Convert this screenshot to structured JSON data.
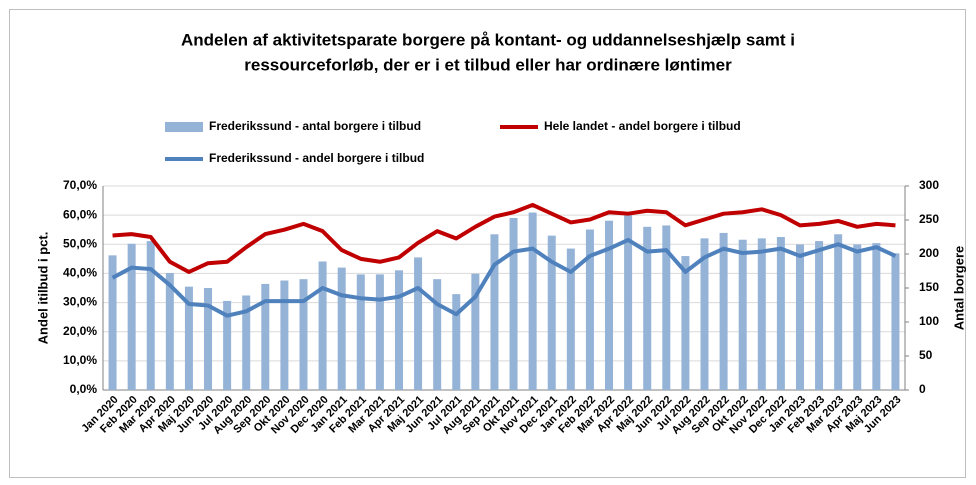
{
  "chart_data": {
    "type": "bar_line_combo",
    "title": [
      "Andelen af aktivitetsparate borgere på kontant- og uddannelseshjælp samt i",
      "ressourceforløb, der er i et tilbud eller har ordinære løntimer"
    ],
    "ylabel": "Andel itilbud i pct.",
    "y2label": "Antal borgere",
    "categories": [
      "Jan 2020",
      "Feb 2020",
      "Mar 2020",
      "Apr 2020",
      "Maj 2020",
      "Jun 2020",
      "Jul 2020",
      "Aug 2020",
      "Sep 2020",
      "Okt 2020",
      "Nov 2020",
      "Dec 2020",
      "Jan 2021",
      "Feb 2021",
      "Mar 2021",
      "Apr 2021",
      "Maj 2021",
      "Jun 2021",
      "Jul 2021",
      "Aug 2021",
      "Sep 2021",
      "Okt 2021",
      "Nov 2021",
      "Dec 2021",
      "Jan 2022",
      "Feb 2022",
      "Mar 2022",
      "Apr 2022",
      "Maj 2022",
      "Jun 2022",
      "Jul 2022",
      "Aug 2022",
      "Sep 2022",
      "Okt 2022",
      "Nov 2022",
      "Dec 2022",
      "Jan 2023",
      "Feb 2023",
      "Mar 2023",
      "Apr 2023",
      "Maj 2023",
      "Jun 2023"
    ],
    "series": [
      {
        "name": "Frederikssund - antal borgere i tilbud",
        "type": "bar",
        "axis": "y2",
        "color": "#95b3d7",
        "values": [
          198,
          215,
          219,
          172,
          152,
          150,
          131,
          139,
          156,
          161,
          163,
          189,
          180,
          170,
          170,
          176,
          195,
          163,
          141,
          171,
          229,
          253,
          261,
          227,
          208,
          236,
          249,
          257,
          240,
          242,
          197,
          223,
          231,
          221,
          223,
          225,
          214,
          219,
          229,
          214,
          216,
          201
        ]
      },
      {
        "name": "Hele landet - andel borgere i tilbud",
        "type": "line",
        "axis": "y",
        "color": "#c00000",
        "values": [
          53,
          53.5,
          52.5,
          44,
          40.5,
          43.5,
          44,
          49,
          53.5,
          55,
          57,
          54.5,
          48,
          45,
          44,
          45.5,
          50.5,
          54.5,
          52,
          56,
          59.5,
          61,
          63.5,
          60.5,
          57.5,
          58.5,
          61,
          60.5,
          61.5,
          61,
          56.5,
          58.5,
          60.5,
          61,
          62,
          60,
          56.5,
          57,
          58,
          56,
          57,
          56.5
        ]
      },
      {
        "name": "Frederikssund - andel borgere i tilbud",
        "type": "line",
        "axis": "y",
        "color": "#4f81bd",
        "values": [
          38.5,
          42,
          41.5,
          36,
          29.5,
          29,
          25.5,
          27,
          30.5,
          30.5,
          30.5,
          35,
          32.5,
          31.5,
          31,
          32,
          35,
          29.5,
          26,
          32,
          43,
          47.5,
          48.5,
          44,
          40.5,
          46,
          48.5,
          51.5,
          47.5,
          48,
          40.5,
          45.5,
          48.5,
          47,
          47.5,
          48.5,
          46,
          48,
          50,
          47.5,
          49,
          46
        ]
      }
    ],
    "ylim": [
      0,
      70
    ],
    "yticks": [
      {
        "value": 0,
        "label": "0,0%"
      },
      {
        "value": 10,
        "label": "10,0%"
      },
      {
        "value": 20,
        "label": "20,0%"
      },
      {
        "value": 30,
        "label": "30,0%"
      },
      {
        "value": 40,
        "label": "40,0%"
      },
      {
        "value": 50,
        "label": "50,0%"
      },
      {
        "value": 60,
        "label": "60,0%"
      },
      {
        "value": 70,
        "label": "70,0%"
      }
    ],
    "y2lim": [
      0,
      300
    ],
    "y2ticks": [
      0,
      50,
      100,
      150,
      200,
      250,
      300
    ],
    "grid": true
  }
}
